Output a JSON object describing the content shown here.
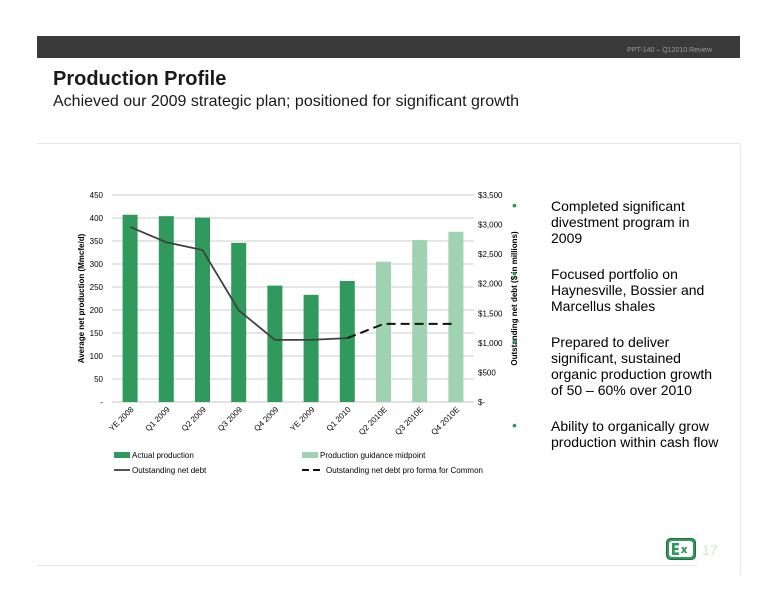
{
  "header": {
    "ref": "PPT-140 – Q12010 Review",
    "title": "Production Profile",
    "subtitle": "Achieved our 2009 strategic plan; positioned for significant growth"
  },
  "bullets": [
    "Completed significant divestment program in 2009",
    "Focused portfolio on Haynesville, Bossier and Marcellus shales",
    "Prepared to deliver significant, sustained organic production growth of 50 – 60% over 2010",
    "Ability to organically grow production within cash flow"
  ],
  "page_number": "17",
  "colors": {
    "actual_bar": "#2f9a5c",
    "guidance_bar": "#9fd2b0",
    "debt_line": "#404040",
    "bullet": "#2f9658"
  },
  "chart_data": {
    "type": "bar",
    "categories": [
      "YE 2008",
      "Q1 2009",
      "Q2 2009",
      "Q3 2009",
      "Q4 2009",
      "YE 2009",
      "Q1 2010",
      "Q2 2010E",
      "Q3 2010E",
      "Q4 2010E"
    ],
    "ylabel": "Average net production (Mmcfe/d)",
    "y2label": "Outstanding net debt ($ in millions)",
    "ylim": [
      0,
      450
    ],
    "y2lim": [
      0,
      3500
    ],
    "yticks": [
      "-",
      "50",
      "100",
      "150",
      "200",
      "250",
      "300",
      "350",
      "400",
      "450"
    ],
    "y2ticks": [
      "$-",
      "$500",
      "$1,000",
      "$1,500",
      "$2,000",
      "$2,500",
      "$3,000",
      "$3,500"
    ],
    "series": [
      {
        "name": "Actual production",
        "type": "bar",
        "axis": "left",
        "values": [
          407,
          404,
          401,
          346,
          253,
          233,
          263,
          null,
          null,
          null
        ]
      },
      {
        "name": "Production guidance midpoint",
        "type": "bar",
        "axis": "left",
        "values": [
          null,
          null,
          null,
          null,
          null,
          null,
          null,
          305,
          352,
          370
        ]
      },
      {
        "name": "Outstanding net debt",
        "type": "line",
        "axis": "right",
        "values": [
          2960,
          2700,
          2570,
          1550,
          1050,
          1050,
          1080,
          null,
          null,
          null
        ]
      },
      {
        "name": "Outstanding net debt pro forma for Common",
        "type": "line",
        "style": "dashed",
        "axis": "right",
        "values": [
          null,
          null,
          null,
          null,
          null,
          null,
          1080,
          1320,
          1320,
          1320
        ]
      }
    ],
    "legend": "bottom",
    "grid": true
  }
}
